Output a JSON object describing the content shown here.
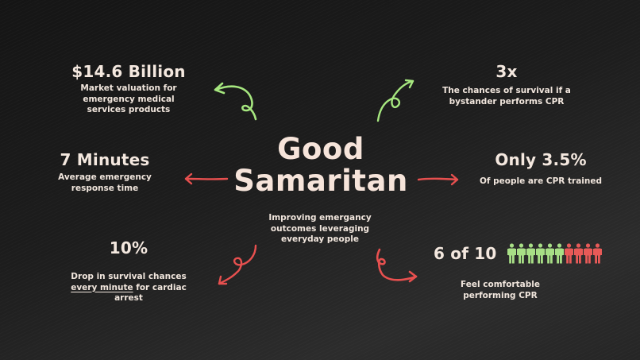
{
  "title": {
    "line1": "Good",
    "line2": "Samaritan"
  },
  "subtitle": "Improving emergancy outcomes leveraging everyday people",
  "stats": {
    "market": {
      "value": "$14.6 Billion",
      "desc": "Market valuation for emergency medical services products"
    },
    "survival": {
      "value": "3x",
      "desc": "The chances of survival if a bystander performs CPR"
    },
    "response": {
      "value": "7 Minutes",
      "desc": "Average emergency response time"
    },
    "trained": {
      "value": "Only 3.5%",
      "desc": "Of people are CPR trained"
    },
    "drop": {
      "value": "10%",
      "desc_pre": "Drop in survival chances ",
      "desc_underline": "every minute",
      "desc_post": " for cardiac arrest"
    },
    "comfortable": {
      "value": "6 of 10",
      "desc": "Feel comfortable performing CPR",
      "green_count": 6,
      "red_count": 4
    }
  },
  "colors": {
    "background": "#1f1f1f",
    "text": "#f3e7de",
    "green": "#a6e77f",
    "red": "#e8504f",
    "person_green": "#a8df86",
    "person_red": "#e85a58"
  },
  "icons": {
    "top_left_arrow": "curly-arrow-green",
    "top_right_arrow": "curly-arrow-green",
    "left_arrow": "straight-arrow-red",
    "right_arrow": "straight-arrow-red",
    "bottom_left_arrow": "curly-arrow-red",
    "bottom_right_arrow": "curly-arrow-red",
    "people": "person-icon"
  }
}
